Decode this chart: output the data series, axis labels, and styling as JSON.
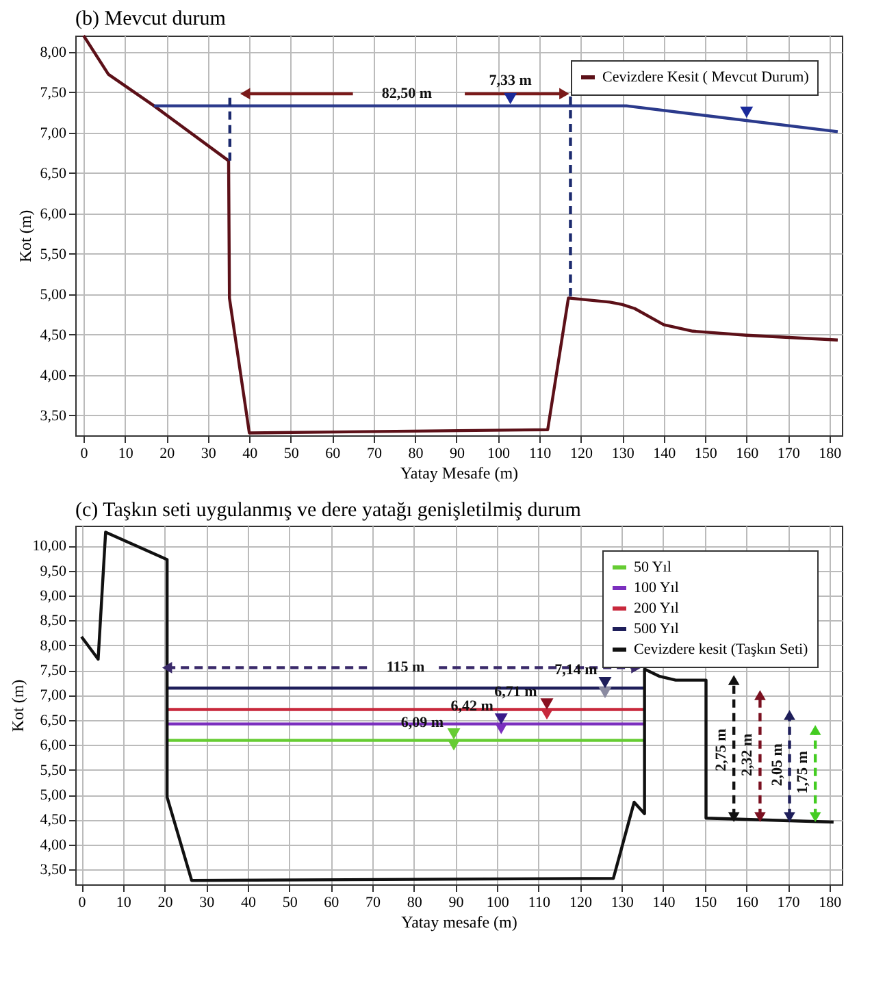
{
  "chart_data": [
    {
      "type": "line",
      "title": "(b) Mevcut durum",
      "xlabel": "Yatay Mesafe (m)",
      "ylabel": "Kot (m)",
      "xlim": [
        -2,
        183
      ],
      "xticks": [
        0,
        10,
        20,
        30,
        40,
        50,
        60,
        70,
        80,
        90,
        100,
        110,
        120,
        130,
        140,
        150,
        160,
        170,
        180
      ],
      "ylim": [
        3.25,
        8.2
      ],
      "yticks": [
        {
          "value": 3.5,
          "label": "3,50"
        },
        {
          "value": 4.0,
          "label": "4,00"
        },
        {
          "value": 4.5,
          "label": "4,50"
        },
        {
          "value": 5.0,
          "label": "5,00"
        },
        {
          "value": 5.5,
          "label": "5,50"
        },
        {
          "value": 6.0,
          "label": "6,00"
        },
        {
          "value": 6.5,
          "label": "6,50"
        },
        {
          "value": 7.0,
          "label": "7,00"
        },
        {
          "value": 7.5,
          "label": "7,50"
        },
        {
          "value": 8.0,
          "label": "8,00"
        }
      ],
      "grid": true,
      "legend": "top right",
      "series": [
        {
          "name": "Cevizdere Kesit ( Mevcut Durum)",
          "color": "#5c1018",
          "x": [
            0,
            6,
            17,
            35,
            35.2,
            40,
            112,
            117,
            127,
            130,
            133,
            140,
            147,
            160,
            182
          ],
          "values": [
            8.2,
            7.72,
            7.33,
            6.65,
            4.95,
            3.28,
            3.32,
            4.95,
            4.9,
            4.87,
            4.82,
            4.62,
            4.54,
            4.49,
            4.43
          ]
        },
        {
          "color": "#2b3a8c",
          "x": [
            17,
            131,
            182
          ],
          "values": [
            7.33,
            7.33,
            7.01
          ]
        },
        {
          "color": "#1c2a6e",
          "line_style": "dashed",
          "x": [
            35.3,
            35.3
          ],
          "values": [
            6.65,
            7.45
          ]
        },
        {
          "color": "#1c2a6e",
          "line_style": "dashed",
          "x": [
            117.5,
            117.5
          ],
          "values": [
            4.97,
            7.47
          ]
        },
        {
          "color": "#7a1a1a",
          "marker": "triangle",
          "x": [
            39,
            65,
            78,
            92,
            116
          ],
          "values": [
            7.48,
            7.48,
            null,
            7.48,
            7.48
          ]
        },
        {
          "type": "scatter",
          "marker": "triangle",
          "color": "#1a2a9a",
          "x": [
            103,
            160
          ],
          "values": [
            7.42,
            7.25
          ]
        }
      ],
      "annotations": [
        {
          "text": "7,33 m",
          "x": 103,
          "y": 7.42
        },
        "82,50 m"
      ]
    },
    {
      "type": "line",
      "title": "(c) Taşkın seti uygulanmış ve dere yatağı genişletilmiş durum",
      "xlabel": "Yatay mesafe (m)",
      "ylabel": "Kot (m)",
      "xlim": [
        -1.5,
        183
      ],
      "xticks": [
        0,
        10,
        20,
        30,
        40,
        50,
        60,
        70,
        80,
        90,
        100,
        110,
        120,
        130,
        140,
        150,
        160,
        170,
        180
      ],
      "ylim": [
        3.2,
        10.4
      ],
      "yticks": [
        {
          "value": 3.5,
          "label": "3,50"
        },
        {
          "value": 4.0,
          "label": "4,00"
        },
        {
          "value": 4.5,
          "label": "4,50"
        },
        {
          "value": 5.0,
          "label": "5,00"
        },
        {
          "value": 5.5,
          "label": "5,50"
        },
        {
          "value": 6.0,
          "label": "6,00"
        },
        {
          "value": 6.5,
          "label": "6,50"
        },
        {
          "value": 7.0,
          "label": "7,00"
        },
        {
          "value": 7.5,
          "label": "7,50"
        },
        {
          "value": 8.0,
          "label": "8,00"
        },
        {
          "value": 8.5,
          "label": "8,50"
        },
        {
          "value": 9.0,
          "label": "9,00"
        },
        {
          "value": 9.5,
          "label": "9,50"
        },
        {
          "value": 10.0,
          "label": "10,00"
        }
      ],
      "grid": true,
      "legend": "top right",
      "series": [
        {
          "name": "50 Yıl",
          "color": "#66cc33",
          "x": [
            20.6,
            135.5
          ],
          "values": [
            6.09,
            6.09
          ]
        },
        {
          "name": "100 Yıl",
          "color": "#7b2fbe",
          "x": [
            20.6,
            135.5
          ],
          "values": [
            6.42,
            6.42
          ]
        },
        {
          "name": "200 Yıl",
          "color": "#c8283c",
          "x": [
            20.6,
            135.5
          ],
          "values": [
            6.71,
            6.71
          ]
        },
        {
          "name": "500 Yıl",
          "color": "#1e1e5a",
          "x": [
            20.6,
            135.5
          ],
          "values": [
            7.14,
            7.14
          ]
        },
        {
          "name": "Cevizdere kesit (Taşkın Seti)",
          "color": "#111111",
          "x": [
            0,
            4,
            5.8,
            20.6,
            20.6,
            26.5,
            128,
            133,
            135.5,
            135.5,
            139,
            143,
            150.3,
            150.3,
            181
          ],
          "values": [
            8.17,
            7.72,
            10.27,
            9.72,
            4.95,
            3.28,
            3.32,
            4.85,
            4.62,
            7.52,
            7.38,
            7.3,
            7.3,
            4.53,
            4.45
          ]
        },
        {
          "type": "scatter",
          "marker": "triangle",
          "colors": [
            "#66cc33",
            "#7b2fbe",
            "#c8283c",
            "#8a8aa0"
          ],
          "x": [
            89.6,
            101,
            112,
            126
          ],
          "values": [
            6.0,
            6.33,
            6.62,
            7.05
          ]
        },
        {
          "type": "scatter",
          "marker": "triangle",
          "colors": [
            "#66cc33",
            "#3a1a8a",
            "#8a1020",
            "#1e1e5a"
          ],
          "x": [
            89.6,
            101,
            112,
            126
          ],
          "values": [
            6.22,
            6.52,
            6.82,
            7.25
          ]
        },
        {
          "color": "#3a2a6a",
          "line_style": "dashed",
          "marker": "triangle",
          "x": [
            20.6,
            70,
            78,
            86,
            133.5
          ],
          "values": [
            7.55,
            7.55,
            null,
            7.55,
            7.55
          ]
        },
        {
          "color": "#111111",
          "line_style": "dashed",
          "marker": "triangle",
          "x": [
            157,
            157
          ],
          "values": [
            4.55,
            7.3
          ]
        },
        {
          "color": "#7a1020",
          "line_style": "dashed",
          "marker": "triangle",
          "x": [
            163.3,
            163.3
          ],
          "values": [
            4.55,
            7.0
          ]
        },
        {
          "color": "#1e1e5a",
          "line_style": "dashed",
          "marker": "triangle",
          "x": [
            170.4,
            170.4
          ],
          "values": [
            4.55,
            6.6
          ]
        },
        {
          "color": "#44cc22",
          "line_style": "dashed",
          "marker": "triangle",
          "x": [
            176.6,
            176.6
          ],
          "values": [
            4.55,
            6.3
          ]
        }
      ],
      "annotations": [
        "115 m",
        {
          "text": "7,14 m",
          "x": 119,
          "y": 7.14
        },
        {
          "text": "6,71 m",
          "x": 104.5,
          "y": 6.71
        },
        {
          "text": "6,42 m",
          "x": 94,
          "y": 6.42
        },
        {
          "text": "6,09 m",
          "x": 82,
          "y": 6.09
        },
        {
          "text": "2,75 m",
          "x": 157,
          "y": 5.9
        },
        {
          "text": "2,32 m",
          "x": 163.3,
          "y": 5.8
        },
        {
          "text": "2,05 m",
          "x": 170.4,
          "y": 5.6
        },
        {
          "text": "1,75 m",
          "x": 176.6,
          "y": 5.45
        }
      ]
    }
  ]
}
